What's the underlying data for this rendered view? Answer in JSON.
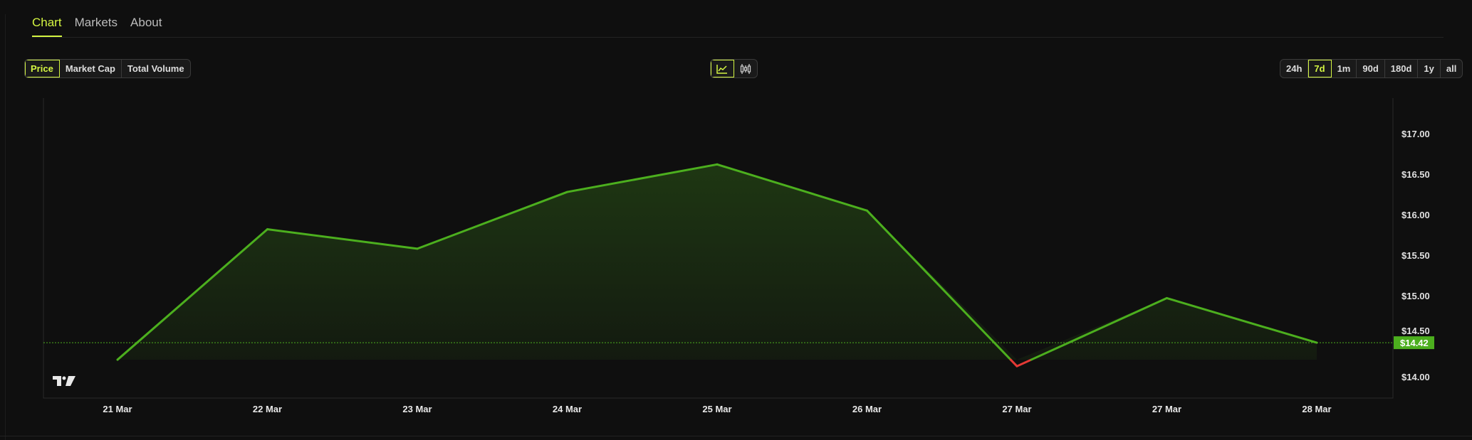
{
  "tabs": [
    {
      "label": "Chart",
      "active": true
    },
    {
      "label": "Markets"
    },
    {
      "label": "About"
    }
  ],
  "metric_buttons": [
    {
      "label": "Price",
      "active": true
    },
    {
      "label": "Market Cap"
    },
    {
      "label": "Total Volume"
    }
  ],
  "chart_type_buttons": [
    {
      "icon": "line-chart-icon",
      "active": true
    },
    {
      "icon": "candlestick-icon"
    }
  ],
  "range_buttons": [
    {
      "label": "24h"
    },
    {
      "label": "7d",
      "active": true
    },
    {
      "label": "1m"
    },
    {
      "label": "90d"
    },
    {
      "label": "180d"
    },
    {
      "label": "1y"
    },
    {
      "label": "all"
    }
  ],
  "colors": {
    "accent": "#d4f542",
    "up": "#4caf1e",
    "down": "#e53935"
  },
  "chart_data": {
    "type": "line",
    "x": [
      "21 Mar",
      "22 Mar",
      "23 Mar",
      "24 Mar",
      "25 Mar",
      "26 Mar",
      "27 Mar",
      "27 Mar",
      "28 Mar"
    ],
    "values": [
      14.21,
      15.82,
      15.58,
      16.28,
      16.62,
      16.05,
      14.13,
      14.97,
      14.42
    ],
    "yticks": [
      "$14.00",
      "$14.50",
      "$15.00",
      "$15.50",
      "$16.00",
      "$16.50",
      "$17.00"
    ],
    "ytick_values": [
      14,
      14.5,
      15,
      15.5,
      16,
      16.5,
      17
    ],
    "ylim": [
      13.72,
      17.4
    ],
    "current_price_label": "$14.42",
    "current_price": 14.42,
    "baseline": 14.21,
    "grid": false
  }
}
